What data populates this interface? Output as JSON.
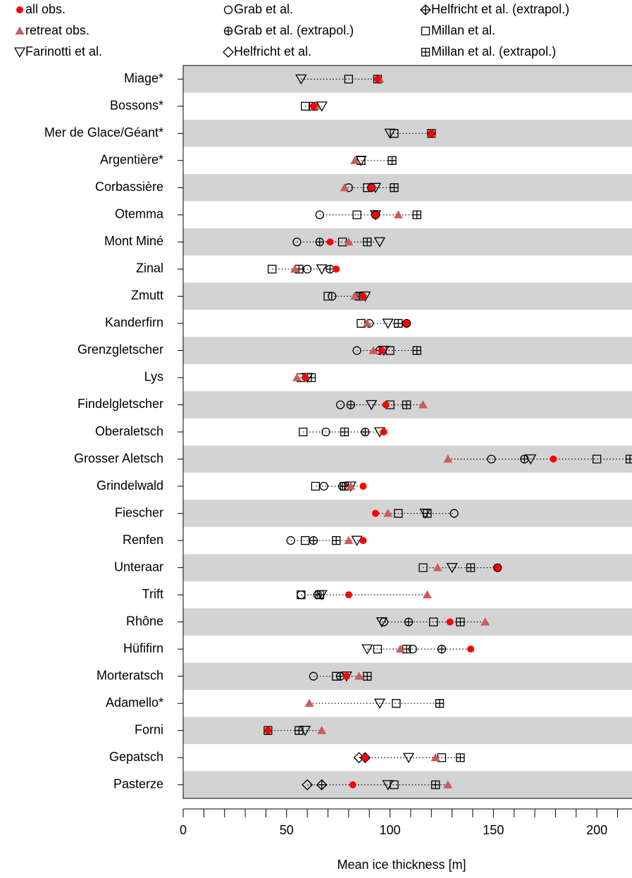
{
  "chart_data": {
    "type": "dotplot",
    "x_label": "Mean ice thickness [m]",
    "xlim": [
      0,
      217
    ],
    "xticks": [
      0,
      50,
      100,
      150,
      200
    ],
    "minor_xticks": [
      10,
      20,
      30,
      40,
      60,
      70,
      80,
      90,
      110,
      120,
      130,
      140,
      160,
      170,
      180,
      190,
      210
    ],
    "band_color": "#d3d3d3",
    "categories": [
      "Miage*",
      "Bossons*",
      "Mer de Glace/Géant*",
      "Argentière*",
      "Corbassière",
      "Otemma",
      "Mont Miné",
      "Zinal",
      "Zmutt",
      "Kanderfirn",
      "Grenzgletscher",
      "Lys",
      "Findelgletscher",
      "Oberaletsch",
      "Grosser Aletsch",
      "Grindelwald",
      "Fiescher",
      "Renfen",
      "Unteraar",
      "Trift",
      "Rhône",
      "Hüfifirn",
      "Morteratsch",
      "Adamello*",
      "Forni",
      "Gepatsch",
      "Pasterze"
    ],
    "series": [
      {
        "name": "all obs.",
        "marker": "dot",
        "color": "#ff0000",
        "values": [
          94,
          63,
          120,
          null,
          91,
          93,
          71,
          74,
          87,
          108,
          96,
          59,
          98,
          97,
          179,
          87,
          93,
          87,
          152,
          80,
          129,
          139,
          79,
          null,
          41,
          88,
          82
        ]
      },
      {
        "name": "retreat obs.",
        "marker": "triangle-up",
        "color": "#cd5c5c",
        "values": [
          95,
          64,
          120,
          83,
          78,
          104,
          80,
          54,
          83,
          89,
          92,
          55,
          116,
          null,
          128,
          81,
          99,
          80,
          123,
          118,
          146,
          105,
          85,
          61,
          67,
          122,
          128
        ]
      },
      {
        "name": "Farinotti et al.",
        "marker": "triangle-down",
        "color": "#000000",
        "values": [
          57,
          67,
          100,
          86,
          93,
          93,
          95,
          67,
          88,
          99,
          97,
          60,
          91,
          95,
          168,
          81,
          117,
          84,
          130,
          67,
          96,
          89,
          79,
          95,
          59,
          109,
          99
        ]
      },
      {
        "name": "Grab et al.",
        "marker": "circle",
        "color": "#000000",
        "values": [
          null,
          null,
          null,
          null,
          80,
          66,
          55,
          60,
          72,
          90,
          84,
          null,
          76,
          69,
          149,
          68,
          131,
          52,
          null,
          57,
          97,
          111,
          63,
          null,
          null,
          null,
          null
        ]
      },
      {
        "name": "Grab et al. (extrapol.)",
        "marker": "circle-plus",
        "color": "#000000",
        "values": [
          null,
          null,
          null,
          null,
          91,
          93,
          66,
          71,
          84,
          108,
          95,
          null,
          81,
          88,
          165,
          77,
          null,
          63,
          152,
          65,
          109,
          125,
          76,
          null,
          null,
          null,
          null
        ]
      },
      {
        "name": "Helfricht et al.",
        "marker": "diamond",
        "color": "#000000",
        "values": [
          null,
          null,
          null,
          null,
          null,
          null,
          null,
          null,
          null,
          null,
          null,
          null,
          null,
          null,
          null,
          null,
          null,
          null,
          null,
          null,
          null,
          null,
          null,
          null,
          null,
          85,
          60
        ]
      },
      {
        "name": "Helfricht et al. (extrapol.)",
        "marker": "diamond-plus",
        "color": "#000000",
        "values": [
          null,
          null,
          null,
          null,
          null,
          null,
          null,
          null,
          null,
          null,
          null,
          null,
          null,
          null,
          null,
          null,
          null,
          null,
          null,
          null,
          null,
          null,
          null,
          null,
          null,
          88,
          67
        ]
      },
      {
        "name": "Millan et al.",
        "marker": "square",
        "color": "#000000",
        "values": [
          80,
          59,
          102,
          86,
          89,
          84,
          77,
          43,
          70,
          86,
          100,
          57,
          100,
          58,
          200,
          64,
          104,
          59,
          116,
          57,
          121,
          94,
          74,
          103,
          41,
          125,
          102
        ]
      },
      {
        "name": "Millan et al. (extrapol.)",
        "marker": "square-plus",
        "color": "#000000",
        "values": [
          94,
          63,
          120,
          101,
          102,
          113,
          89,
          56,
          85,
          104,
          113,
          62,
          108,
          78,
          216,
          78,
          118,
          74,
          139,
          66,
          134,
          108,
          89,
          124,
          56,
          134,
          122
        ]
      }
    ]
  }
}
